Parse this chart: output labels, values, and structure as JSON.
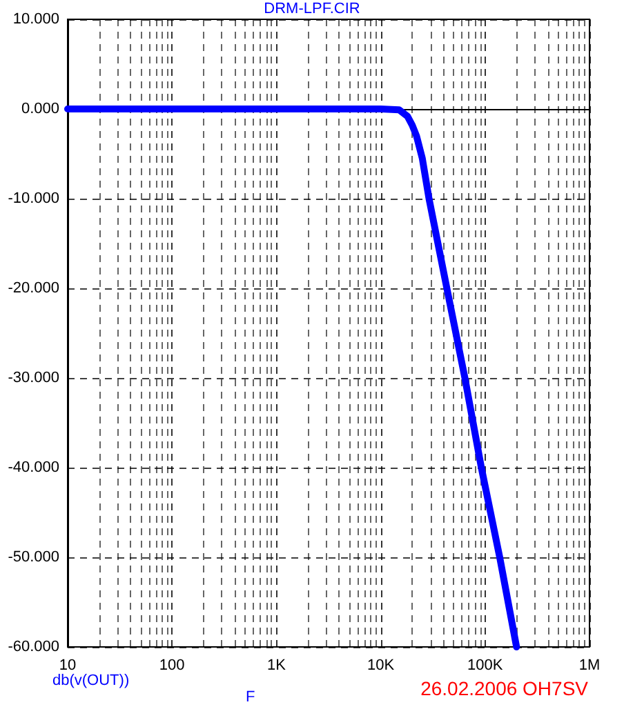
{
  "chart_data": {
    "type": "line",
    "title": "DRM-LPF.CIR",
    "xlabel": "F",
    "ylabel": "db(v(OUT))",
    "annotations": [
      "26.02.2006 OH7SV"
    ],
    "log": "x",
    "grid": true,
    "marker": "none",
    "line_style": "solid",
    "xlim": [
      10,
      1000000
    ],
    "xticks": [
      10,
      100,
      {
        "value": 1000,
        "label": "1K"
      },
      {
        "value": 10000,
        "label": "10K"
      },
      {
        "value": 100000,
        "label": "100K"
      },
      {
        "value": 1000000,
        "label": "1M"
      }
    ],
    "ylim": [
      -60,
      10
    ],
    "yticks": [
      {
        "value": -60,
        "label": "-60.000"
      },
      {
        "value": -50,
        "label": "-50.000"
      },
      {
        "value": -40,
        "label": "-40.000"
      },
      {
        "value": -30,
        "label": "-30.000"
      },
      {
        "value": -20,
        "label": "-20.000"
      },
      {
        "value": -10,
        "label": "-10.000"
      },
      {
        "value": 0,
        "label": "0.000"
      },
      {
        "value": 10,
        "label": "10.000"
      }
    ],
    "x": [
      10,
      1000,
      10000,
      15000,
      18000,
      20000,
      22000,
      25000,
      29000,
      43000,
      64000,
      92000,
      138000,
      200000
    ],
    "series": [
      {
        "color": "#0000ff",
        "values": [
          0,
          0,
          0,
          -0.1,
          -0.8,
          -1.8,
          -3,
          -5.5,
          -10,
          -20,
          -30,
          -40,
          -50,
          -60
        ]
      }
    ]
  }
}
